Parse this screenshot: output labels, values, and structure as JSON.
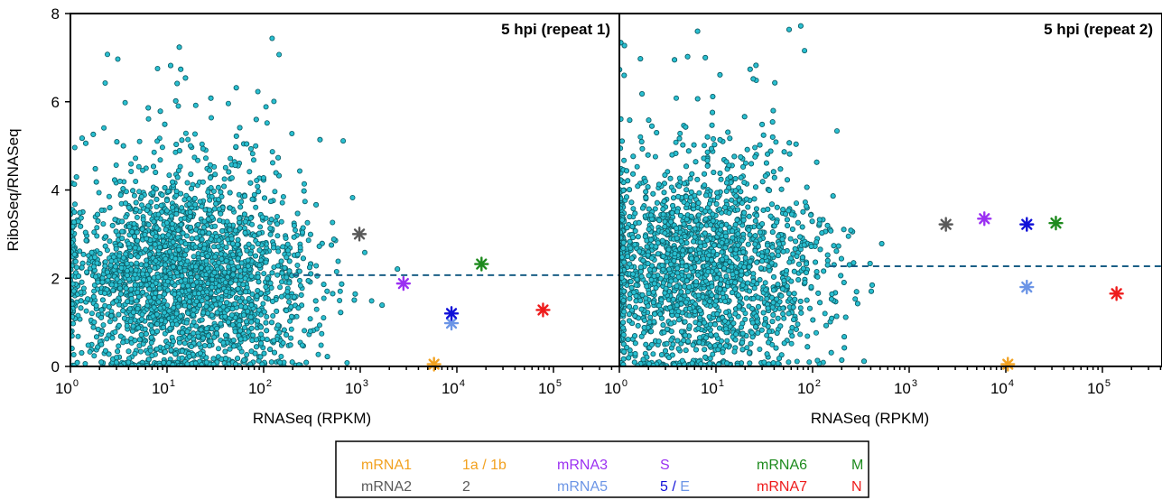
{
  "chart_data": [
    {
      "type": "scatter",
      "title": "5 hpi (repeat 1)",
      "xlabel": "RNASeq (RPKM)",
      "ylabel": "RiboSeq/RNASeq",
      "x_scale": "log10",
      "xlim": [
        1,
        500000
      ],
      "ylim": [
        0,
        8
      ],
      "x_ticks": [
        1,
        10,
        100,
        1000,
        10000,
        100000
      ],
      "y_ticks": [
        0,
        2,
        4,
        6,
        8
      ],
      "threshold_y": 2.07,
      "cloud": {
        "points_approx": 3600,
        "center_x": 15,
        "center_y": 1.9,
        "x_range": [
          1,
          30000
        ],
        "y_range": [
          0,
          7.9
        ]
      },
      "highlighted": [
        {
          "id": "mRNA1",
          "x": 5800,
          "y": 0.05,
          "color": "#f2a11f"
        },
        {
          "id": "mRNA2",
          "x": 980,
          "y": 3.0,
          "color": "#595959"
        },
        {
          "id": "mRNA3",
          "x": 2800,
          "y": 1.88,
          "color": "#9b30f2"
        },
        {
          "id": "mRNA5",
          "x": 8800,
          "y": 0.98,
          "color": "#6c95e6"
        },
        {
          "id": "5",
          "x": 8800,
          "y": 1.2,
          "color": "#1010d8"
        },
        {
          "id": "mRNA6",
          "x": 18000,
          "y": 2.32,
          "color": "#1d8a1d"
        },
        {
          "id": "mRNA7",
          "x": 78000,
          "y": 1.28,
          "color": "#ee1b1b"
        }
      ]
    },
    {
      "type": "scatter",
      "title": "5 hpi (repeat 2)",
      "xlabel": "RNASeq (RPKM)",
      "ylabel": "",
      "x_scale": "log10",
      "xlim": [
        1,
        500000
      ],
      "ylim": [
        0,
        8
      ],
      "x_ticks": [
        1,
        10,
        100,
        1000,
        10000,
        100000
      ],
      "y_ticks": [],
      "threshold_y": 2.27,
      "cloud": {
        "points_approx": 3600,
        "center_x": 7,
        "center_y": 2.1,
        "x_range": [
          1,
          3000
        ],
        "y_range": [
          0,
          8
        ]
      },
      "highlighted": [
        {
          "id": "mRNA1",
          "x": 10500,
          "y": 0.05,
          "color": "#f2a11f"
        },
        {
          "id": "mRNA2",
          "x": 2400,
          "y": 3.22,
          "color": "#595959"
        },
        {
          "id": "mRNA3",
          "x": 6000,
          "y": 3.35,
          "color": "#9b30f2"
        },
        {
          "id": "mRNA5",
          "x": 16500,
          "y": 1.8,
          "color": "#6c95e6"
        },
        {
          "id": "5",
          "x": 16500,
          "y": 3.22,
          "color": "#1010d8"
        },
        {
          "id": "mRNA6",
          "x": 33000,
          "y": 3.25,
          "color": "#1d8a1d"
        },
        {
          "id": "mRNA7",
          "x": 140000,
          "y": 1.65,
          "color": "#ee1b1b"
        }
      ]
    }
  ],
  "legend": {
    "rows": [
      [
        {
          "mrna": "mRNA1",
          "mrna_color": "#f2a11f",
          "protein": [
            {
              "text": "1a / 1b",
              "color": "#f2a11f"
            }
          ]
        },
        {
          "mrna": "mRNA3",
          "mrna_color": "#9b30f2",
          "protein": [
            {
              "text": "S",
              "color": "#9b30f2"
            }
          ]
        },
        {
          "mrna": "mRNA6",
          "mrna_color": "#1d8a1d",
          "protein": [
            {
              "text": "M",
              "color": "#1d8a1d"
            }
          ]
        }
      ],
      [
        {
          "mrna": "mRNA2",
          "mrna_color": "#595959",
          "protein": [
            {
              "text": "2",
              "color": "#595959"
            }
          ]
        },
        {
          "mrna": "mRNA5",
          "mrna_color": "#6c95e6",
          "protein": [
            {
              "text": "5",
              "color": "#1010d8"
            },
            {
              "text": " / ",
              "color": "#1010d8"
            },
            {
              "text": "E",
              "color": "#6c95e6"
            }
          ]
        },
        {
          "mrna": "mRNA7",
          "mrna_color": "#ee1b1b",
          "protein": [
            {
              "text": "N",
              "color": "#ee1b1b"
            }
          ]
        }
      ]
    ]
  },
  "colors": {
    "dot_fill": "#29bfd0",
    "dot_stroke": "#0d5c66",
    "threshold": "#1a5f86"
  }
}
